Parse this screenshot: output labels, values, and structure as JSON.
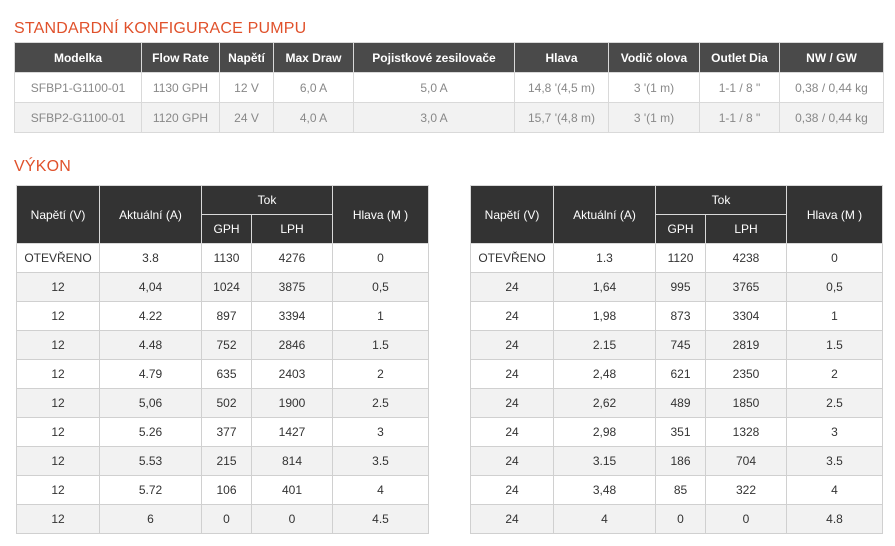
{
  "config": {
    "title": "STANDARDNÍ KONFIGURACE PUMPU",
    "headers": [
      "Modelka",
      "Flow Rate",
      "Napětí",
      "Max Draw",
      "Pojistkové zesilovače",
      "Hlava",
      "Vodič olova",
      "Outlet Dia",
      "NW / GW"
    ],
    "rows": [
      [
        "SFBP1-G1100-01",
        "1130 GPH",
        "12 V",
        "6,0 A",
        "5,0 A",
        "14,8 '(4,5 m)",
        "3 '(1 m)",
        "1-1 / 8 \"",
        "0,38 / 0,44 kg"
      ],
      [
        "SFBP2-G1100-01",
        "1120 GPH",
        "24 V",
        "4,0 A",
        "3,0 A",
        "15,7 '(4,8 m)",
        "3 '(1 m)",
        "1-1 / 8 \"",
        "0,38 / 0,44 kg"
      ]
    ]
  },
  "performance": {
    "title": "VÝKON",
    "headers": {
      "voltage": "Napětí (V)",
      "current": "Aktuální (A)",
      "flow": "Tok",
      "gph": "GPH",
      "lph": "LPH",
      "head": "Hlava (M )"
    },
    "left_rows": [
      [
        "OTEVŘENO",
        "3.8",
        "1130",
        "4276",
        "0"
      ],
      [
        "12",
        "4,04",
        "1024",
        "3875",
        "0,5"
      ],
      [
        "12",
        "4.22",
        "897",
        "3394",
        "1"
      ],
      [
        "12",
        "4.48",
        "752",
        "2846",
        "1.5"
      ],
      [
        "12",
        "4.79",
        "635",
        "2403",
        "2"
      ],
      [
        "12",
        "5,06",
        "502",
        "1900",
        "2.5"
      ],
      [
        "12",
        "5.26",
        "377",
        "1427",
        "3"
      ],
      [
        "12",
        "5.53",
        "215",
        "814",
        "3.5"
      ],
      [
        "12",
        "5.72",
        "106",
        "401",
        "4"
      ],
      [
        "12",
        "6",
        "0",
        "0",
        "4.5"
      ]
    ],
    "right_rows": [
      [
        "OTEVŘENO",
        "1.3",
        "1120",
        "4238",
        "0"
      ],
      [
        "24",
        "1,64",
        "995",
        "3765",
        "0,5"
      ],
      [
        "24",
        "1,98",
        "873",
        "3304",
        "1"
      ],
      [
        "24",
        "2.15",
        "745",
        "2819",
        "1.5"
      ],
      [
        "24",
        "2,48",
        "621",
        "2350",
        "2"
      ],
      [
        "24",
        "2,62",
        "489",
        "1850",
        "2.5"
      ],
      [
        "24",
        "2,98",
        "351",
        "1328",
        "3"
      ],
      [
        "24",
        "3.15",
        "186",
        "704",
        "3.5"
      ],
      [
        "24",
        "3,48",
        "85",
        "322",
        "4"
      ],
      [
        "24",
        "4",
        "0",
        "0",
        "4.8"
      ]
    ]
  },
  "colors": {
    "accent": "#e0512b",
    "header_bg": "#333333",
    "alt_row": "#f2f2f2"
  }
}
